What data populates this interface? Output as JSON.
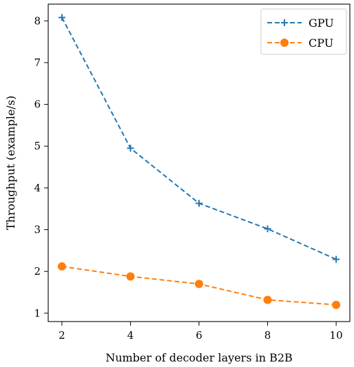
{
  "chart_data": {
    "type": "line",
    "xlabel": "Number of decoder layers in B2B",
    "ylabel": "Throughput (example/s)",
    "xlim": [
      1.6,
      10.4
    ],
    "ylim": [
      0.8,
      8.4
    ],
    "xticks": [
      2,
      4,
      6,
      8,
      10
    ],
    "yticks": [
      1,
      2,
      3,
      4,
      5,
      6,
      7,
      8
    ],
    "grid": false,
    "legend_position": "top-right",
    "x": [
      2,
      4,
      6,
      8,
      10
    ],
    "series": [
      {
        "name": "GPU",
        "values": [
          8.08,
          4.95,
          3.63,
          3.02,
          2.29
        ],
        "color": "#1f77b4",
        "marker": "plus",
        "line_style": "dashed"
      },
      {
        "name": "CPU",
        "values": [
          2.12,
          1.88,
          1.7,
          1.32,
          1.2
        ],
        "color": "#ff7f0e",
        "marker": "circle",
        "line_style": "dashed"
      }
    ]
  }
}
